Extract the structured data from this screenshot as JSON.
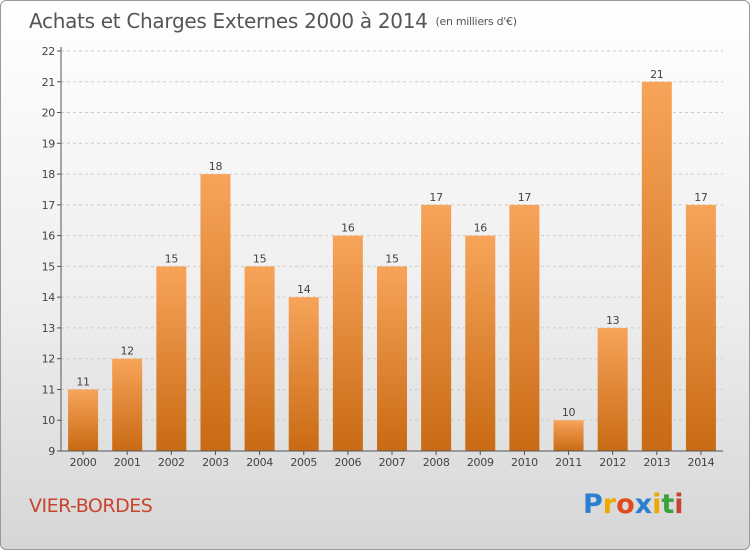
{
  "header": {
    "title": "Achats et Charges Externes 2000 à 2014",
    "unit": "(en milliers d'€)"
  },
  "footer": {
    "commune": "VIER-BORDES"
  },
  "logo": {
    "letters": [
      "P",
      "r",
      "o",
      "x",
      "i",
      "t",
      "i"
    ],
    "colors": [
      "#2b7fd0",
      "#f0a800",
      "#e04a1c",
      "#2b7fd0",
      "#f0a800",
      "#3aa23a",
      "#c8442e"
    ]
  },
  "colors": {
    "bar_top": "#f7a45a",
    "bar_bottom": "#c96a14",
    "grid": "#cccccc",
    "axis": "#555555"
  },
  "chart_data": {
    "type": "bar",
    "title": "Achats et Charges Externes 2000 à 2014",
    "xlabel": "",
    "ylabel": "",
    "categories": [
      "2000",
      "2001",
      "2002",
      "2003",
      "2004",
      "2005",
      "2006",
      "2007",
      "2008",
      "2009",
      "2010",
      "2011",
      "2012",
      "2013",
      "2014"
    ],
    "values": [
      11,
      12,
      15,
      18,
      15,
      14,
      16,
      15,
      17,
      16,
      17,
      10,
      13,
      21,
      17
    ],
    "ylim": [
      9,
      22
    ],
    "yticks": [
      9,
      10,
      11,
      12,
      13,
      14,
      15,
      16,
      17,
      18,
      19,
      20,
      21,
      22
    ],
    "grid": true,
    "gridlines": "horizontal dashed",
    "legend": "none",
    "data_labels": true
  }
}
